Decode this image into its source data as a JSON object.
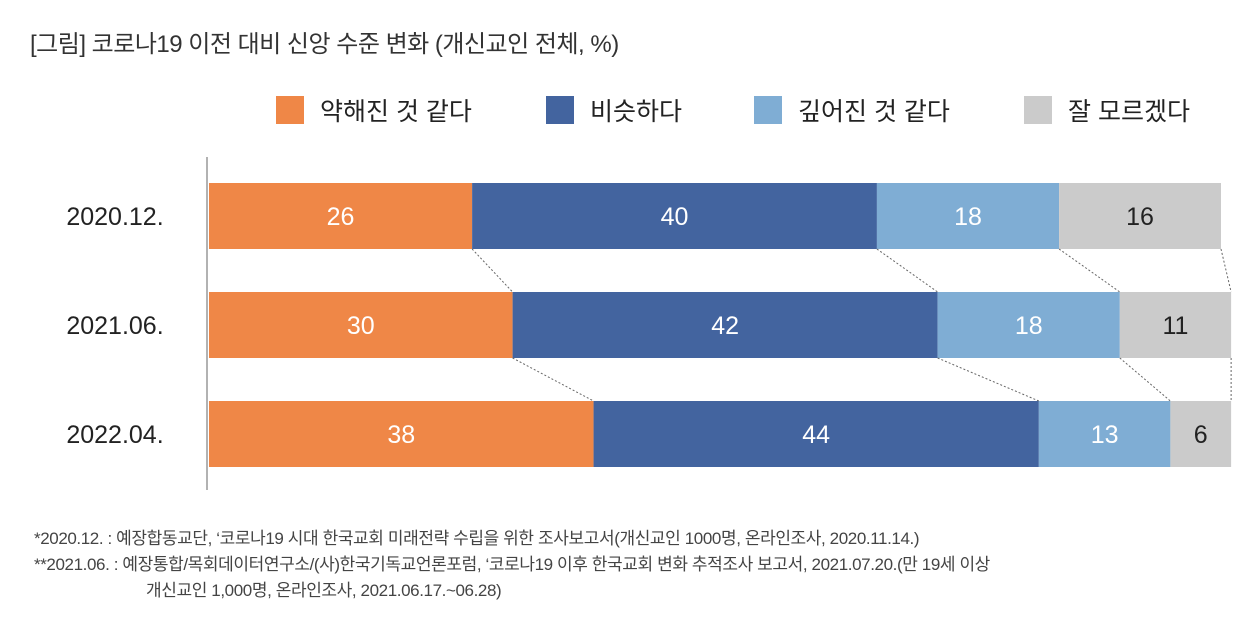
{
  "chart_data": {
    "type": "bar",
    "orientation": "horizontal",
    "stacked": true,
    "title": "[그림] 코로나19 이전 대비 신앙 수준 변화 (개신교인 전체, %)",
    "categories": [
      "2020.12.",
      "2021.06.",
      "2022.04."
    ],
    "series": [
      {
        "name": "약해진 것 같다",
        "color": "#EF8747",
        "label_color": "#ffffff",
        "values": [
          26,
          30,
          38
        ]
      },
      {
        "name": "비슷하다",
        "color": "#43649F",
        "label_color": "#ffffff",
        "values": [
          40,
          42,
          44
        ]
      },
      {
        "name": "깊어진 것 같다",
        "color": "#7FADD4",
        "label_color": "#ffffff",
        "values": [
          18,
          18,
          13
        ]
      },
      {
        "name": "잘 모르겠다",
        "color": "#CBCBCB",
        "label_color": "#222222",
        "values": [
          16,
          11,
          6
        ]
      }
    ],
    "xlim": [
      0,
      100
    ],
    "legend_position": "top",
    "grid": false
  },
  "notes": [
    "*2020.12. : 예장합동교단, ‘코로나19 시대 한국교회 미래전략 수립을 위한 조사보고서(개신교인 1000명, 온라인조사, 2020.11.14.)",
    "**2021.06. : 예장통합/목회데이터연구소/(사)한국기독교언론포럼, ‘코로나19 이후 한국교회 변화 추적조사 보고서, 2021.07.20.(만 19세 이상",
    "개신교인 1,000명, 온라인조사, 2021.06.17.~06.28)"
  ]
}
